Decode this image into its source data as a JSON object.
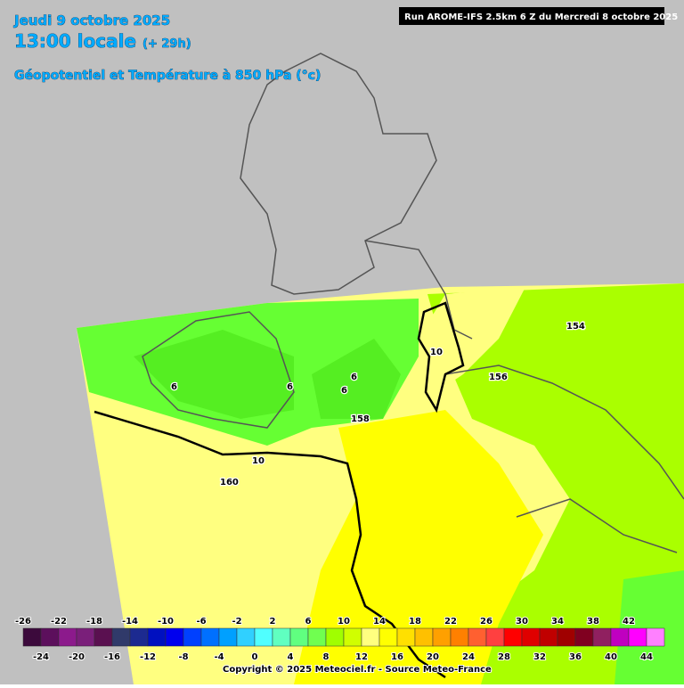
{
  "header": {
    "date": "Jeudi 9 octobre 2025",
    "time": "13:00 locale",
    "lead": "(+ 29h)",
    "field": "Géopotentiel et Température à 850 hPa (°c)",
    "run": "Run AROME-IFS 2.5km 6 Z du Mercredi 8 octobre 2025"
  },
  "map_labels": [
    "154",
    "156",
    "158",
    "160",
    "10",
    "10",
    "6",
    "6",
    "6",
    "6"
  ],
  "legend": {
    "top_labels": [
      -26,
      -22,
      -18,
      -14,
      -10,
      -6,
      -2,
      2,
      6,
      10,
      14,
      18,
      22,
      26,
      30,
      34,
      38,
      42
    ],
    "bottom_labels": [
      -24,
      -20,
      -16,
      -12,
      -8,
      -4,
      0,
      4,
      8,
      12,
      16,
      20,
      24,
      28,
      32,
      36,
      40,
      44
    ],
    "colors": [
      "#3c0a3c",
      "#5c0f5c",
      "#8c1a8c",
      "#7a1f7a",
      "#5a1050",
      "#303a6a",
      "#1c2a90",
      "#0010c0",
      "#0000ee",
      "#0040ff",
      "#0070ff",
      "#00a0ff",
      "#30d0ff",
      "#50ffff",
      "#60ffc0",
      "#60ff80",
      "#70ff50",
      "#a0ff00",
      "#d0ff00",
      "#ffff80",
      "#ffff00",
      "#ffe000",
      "#ffc000",
      "#ffa000",
      "#ff8000",
      "#ff6030",
      "#ff4040",
      "#ff0000",
      "#e00000",
      "#c00000",
      "#a00000",
      "#800020",
      "#902060",
      "#c000c0",
      "#ff00ff",
      "#ff80ff"
    ]
  },
  "copyright": "Copyright © 2025 Meteociel.fr - Source Meteo-France"
}
